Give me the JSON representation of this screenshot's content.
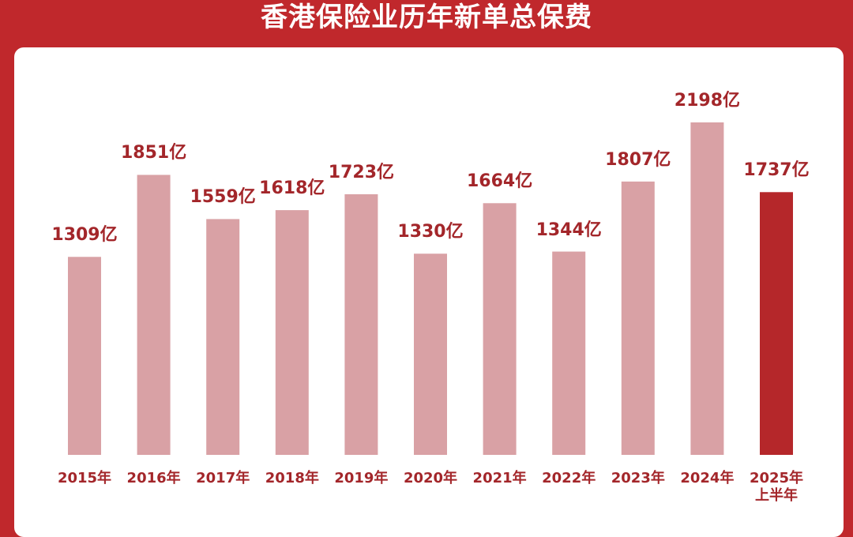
{
  "chart_data": {
    "type": "bar",
    "title": "香港保险业历年新单总保费",
    "categories": [
      "2015年",
      "2016年",
      "2017年",
      "2018年",
      "2019年",
      "2020年",
      "2021年",
      "2022年",
      "2023年",
      "2024年",
      "2025年\n上半年"
    ],
    "values": [
      1309,
      1851,
      1559,
      1618,
      1723,
      1330,
      1664,
      1344,
      1807,
      2198,
      1737
    ],
    "value_labels": [
      "1309亿",
      "1851亿",
      "1559亿",
      "1618亿",
      "1723亿",
      "1330亿",
      "1664亿",
      "1344亿",
      "1807亿",
      "2198亿",
      "1737亿"
    ],
    "colors": [
      "#d9a1a5",
      "#d9a1a5",
      "#d9a1a5",
      "#d9a1a5",
      "#d9a1a5",
      "#d9a1a5",
      "#d9a1a5",
      "#d9a1a5",
      "#d9a1a5",
      "#d9a1a5",
      "#b5272a"
    ]
  }
}
